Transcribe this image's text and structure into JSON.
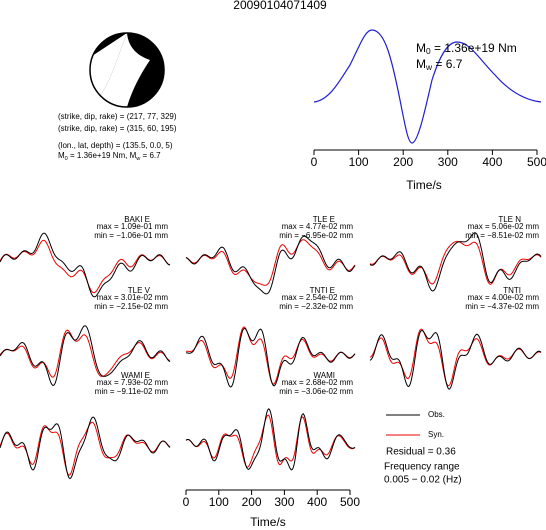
{
  "title": "20090104071409",
  "mechanism": {
    "lines": [
      "(strike, dip, rake) = (217, 77, 329)",
      "(strike, dip, rake) = (315, 60, 195)",
      "(lon., lat, depth) = (135.5, 0.0, 5)"
    ],
    "moment_parts": [
      "M",
      "0",
      " = 1.36e+19 Nm, M",
      "w",
      " = 6.7"
    ]
  },
  "stf": {
    "m0_parts": [
      "M",
      "0",
      " = 1.36e+19 Nm"
    ],
    "mw_parts": [
      "M",
      "w",
      " = 6.7"
    ],
    "xlim": [
      0,
      500
    ],
    "xticks": [
      0,
      100,
      200,
      300,
      400,
      500
    ],
    "xlabel": "Time/s"
  },
  "traces": [
    {
      "station": "BAKI E",
      "max": "max = 1.09e-01 mm",
      "min": "min = −1.06e-01 mm"
    },
    {
      "station": "TLE E",
      "max": "max = 4.77e-02 mm",
      "min": "min = −6.95e-02 mm"
    },
    {
      "station": "TLE N",
      "max": "max = 5.06e-02 mm",
      "min": "min = −8.51e-02 mm"
    },
    {
      "station": "TLE V",
      "max": "max = 3.01e-02 mm",
      "min": "min = −2.15e-02 mm"
    },
    {
      "station": "TNTI E",
      "max": "max = 2.54e-02 mm",
      "min": "min = −2.32e-02 mm"
    },
    {
      "station": "TNTI",
      "max": "max = 4.00e-02 mm",
      "min": "min = −4.37e-02 mm"
    },
    {
      "station": "WAMI E",
      "max": "max = 7.93e-02 mm",
      "min": "min = −9.11e-02 mm"
    },
    {
      "station": "WAMI",
      "max": "max = 2.68e-02 mm",
      "min": "min = −3.06e-02 mm"
    }
  ],
  "trace_axis": {
    "xlim": [
      0,
      500
    ],
    "xticks": [
      0,
      100,
      200,
      300,
      400,
      500
    ],
    "xlabel": "Time/s"
  },
  "legend": {
    "obs": "Obs.",
    "syn": "Syn.",
    "residual": "Residual = 0.36",
    "freq_title": "Frequency range",
    "freq": "0.005 − 0.02 (Hz)"
  }
}
